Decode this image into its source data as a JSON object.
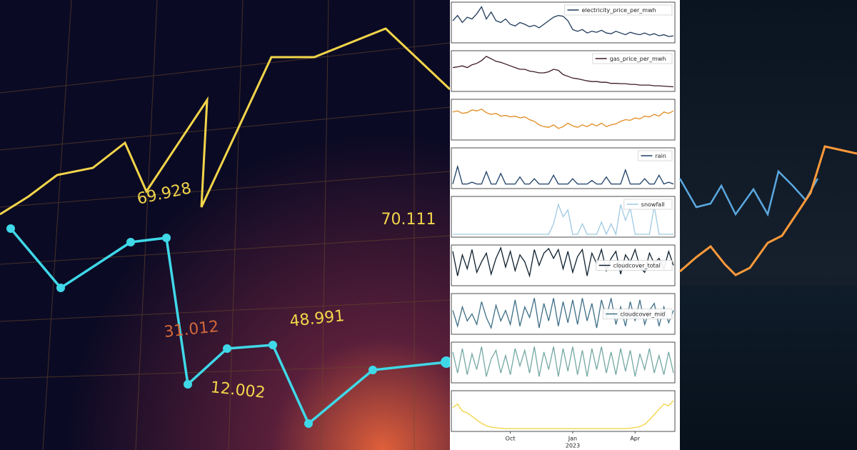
{
  "left_image": {
    "labels": [
      "69.928",
      "70.111",
      "48.991",
      "31.012",
      "12.002"
    ]
  },
  "chart_data": {
    "type": "line",
    "categories": [
      null,
      null,
      null,
      null,
      null,
      null,
      null,
      null,
      null,
      null,
      null,
      null,
      "Oct",
      null,
      null,
      null,
      null,
      null,
      null,
      null,
      null,
      null,
      null,
      null,
      null,
      "Jan",
      null,
      null,
      null,
      null,
      null,
      null,
      null,
      null,
      null,
      null,
      null,
      null,
      "Apr",
      null,
      null,
      null,
      null,
      null,
      null,
      null,
      null
    ],
    "x_sublabel": "2023",
    "ylim": [
      0,
      100
    ],
    "series": [
      {
        "name": "electricity_price_per_mwh",
        "color": "#1f3a5a",
        "legend": "upper right",
        "values": [
          55,
          70,
          50,
          65,
          60,
          75,
          95,
          60,
          80,
          55,
          50,
          60,
          45,
          40,
          50,
          45,
          38,
          42,
          35,
          45,
          55,
          65,
          70,
          68,
          55,
          30,
          25,
          30,
          20,
          25,
          22,
          28,
          20,
          18,
          25,
          20,
          15,
          22,
          18,
          15,
          20,
          14,
          18,
          12,
          15,
          10,
          12
        ]
      },
      {
        "name": "gas_price_per_mwh",
        "color": "#3d1a25",
        "legend": "upper right",
        "values": [
          60,
          62,
          65,
          60,
          68,
          72,
          80,
          92,
          85,
          78,
          75,
          70,
          65,
          60,
          55,
          55,
          50,
          48,
          45,
          45,
          48,
          55,
          52,
          40,
          35,
          30,
          28,
          25,
          22,
          20,
          20,
          18,
          18,
          15,
          15,
          14,
          14,
          12,
          12,
          10,
          10,
          10,
          8,
          8,
          7,
          6,
          5
        ]
      },
      {
        "color": "#e08a1e",
        "values": [
          72,
          75,
          68,
          70,
          78,
          75,
          80,
          70,
          65,
          68,
          60,
          62,
          58,
          60,
          55,
          58,
          50,
          45,
          35,
          30,
          28,
          35,
          25,
          30,
          40,
          32,
          28,
          35,
          30,
          38,
          32,
          40,
          30,
          35,
          38,
          45,
          50,
          48,
          55,
          52,
          60,
          58,
          65,
          60,
          72,
          68,
          75
        ]
      },
      {
        "name": "rain",
        "color": "#1c3f66",
        "legend": "upper right",
        "values": [
          5,
          55,
          5,
          5,
          10,
          5,
          5,
          40,
          5,
          5,
          35,
          5,
          5,
          5,
          25,
          5,
          5,
          20,
          5,
          5,
          5,
          30,
          5,
          5,
          5,
          20,
          5,
          5,
          5,
          15,
          5,
          5,
          25,
          5,
          5,
          5,
          45,
          5,
          5,
          5,
          20,
          5,
          5,
          30,
          5,
          10,
          5
        ]
      },
      {
        "name": "snowfall",
        "color": "#9ec9e2",
        "legend": "upper right",
        "values": [
          0,
          0,
          0,
          0,
          0,
          0,
          0,
          0,
          0,
          0,
          0,
          0,
          0,
          0,
          0,
          0,
          0,
          0,
          0,
          0,
          0,
          30,
          85,
          50,
          70,
          0,
          0,
          30,
          0,
          0,
          0,
          35,
          0,
          30,
          0,
          85,
          40,
          75,
          0,
          0,
          0,
          0,
          80,
          0,
          0,
          0,
          0
        ]
      },
      {
        "name": "cloudcover_total",
        "color": "#0d1f2d",
        "legend": "center right",
        "values": [
          90,
          20,
          80,
          40,
          95,
          30,
          60,
          85,
          25,
          70,
          100,
          45,
          90,
          35,
          80,
          60,
          20,
          95,
          50,
          85,
          98,
          70,
          95,
          40,
          90,
          30,
          75,
          95,
          20,
          85,
          55,
          95,
          35,
          70,
          90,
          25,
          80,
          60,
          95,
          45,
          30,
          85,
          55,
          70,
          40,
          90,
          50
        ]
      },
      {
        "name": "cloudcover_mid",
        "color": "#3e6e86",
        "legend": "center right",
        "values": [
          60,
          15,
          70,
          30,
          50,
          20,
          85,
          40,
          10,
          75,
          30,
          60,
          20,
          90,
          15,
          70,
          40,
          95,
          10,
          80,
          30,
          95,
          15,
          85,
          25,
          90,
          20,
          95,
          30,
          80,
          10,
          90,
          40,
          95,
          20,
          70,
          15,
          85,
          30,
          90,
          20,
          60,
          80,
          15,
          70,
          25,
          60
        ]
      },
      {
        "color": "#74a8a2",
        "values": [
          80,
          20,
          90,
          15,
          75,
          30,
          95,
          10,
          60,
          85,
          20,
          70,
          15,
          90,
          40,
          85,
          20,
          95,
          10,
          80,
          30,
          95,
          10,
          90,
          25,
          95,
          15,
          85,
          10,
          90,
          30,
          95,
          20,
          80,
          15,
          90,
          25,
          85,
          10,
          75,
          30,
          90,
          20,
          70,
          15,
          80,
          20
        ]
      },
      {
        "color": "#f2d23a",
        "values": [
          60,
          70,
          50,
          45,
          35,
          25,
          15,
          8,
          4,
          2,
          1,
          0,
          0,
          0,
          0,
          0,
          0,
          0,
          0,
          0,
          0,
          0,
          0,
          0,
          0,
          0,
          0,
          0,
          0,
          0,
          0,
          0,
          0,
          0,
          0,
          0,
          0,
          1,
          3,
          6,
          12,
          25,
          40,
          55,
          70,
          65,
          80
        ]
      }
    ]
  }
}
